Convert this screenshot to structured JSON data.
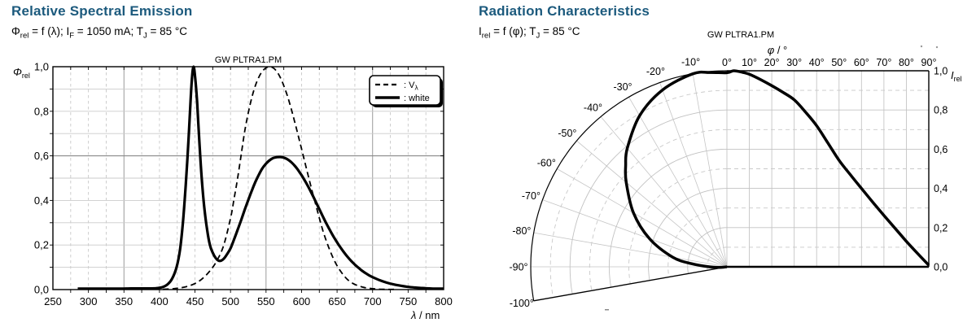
{
  "page": {
    "background": "#ffffff",
    "title_color": "#1c5a7d",
    "watermark_color": "#b4b4b4",
    "curve_color": "#000000"
  },
  "panels": {
    "spectral": {
      "title": "Relative Spectral Emission",
      "subtitle_segments": [
        {
          "t": "Φ"
        },
        {
          "s": "rel"
        },
        {
          "t": " = f (λ); I"
        },
        {
          "s": "F"
        },
        {
          "t": " = 1050 mA; T"
        },
        {
          "s": "J"
        },
        {
          "t": " = 85 °C"
        }
      ],
      "watermark": "GW PLTRA1.PM"
    },
    "radiation": {
      "title": "Radiation Characteristics",
      "subtitle_segments": [
        {
          "t": "I"
        },
        {
          "s": "rel"
        },
        {
          "t": " = f (φ); T"
        },
        {
          "s": "J"
        },
        {
          "t": " = 85 °C"
        }
      ],
      "watermark": "GW PLTRA1.PM"
    }
  },
  "chart_data": [
    {
      "type": "line",
      "title": "Relative Spectral Emission",
      "subtitle": "Φrel = f (λ); IF = 1050 mA; TJ = 85 °C",
      "xlabel": "λ / nm",
      "ylabel": "Φrel",
      "xlabel_rich": {
        "base": "λ",
        "suffix": " / nm"
      },
      "ylabel_rich": {
        "base": "Φ",
        "sub": "rel"
      },
      "xlim": [
        250,
        800
      ],
      "ylim": [
        0,
        1
      ],
      "grid": {
        "minor_x_step_nm": 25,
        "minor_y_step": 0.1,
        "emphasized_x": [
          350,
          550,
          700
        ],
        "emphasized_y": [
          0.6
        ]
      },
      "x_ticks": [
        {
          "v": 250,
          "label": "250"
        },
        {
          "v": 300,
          "label": "300"
        },
        {
          "v": 350,
          "label": "350"
        },
        {
          "v": 400,
          "label": "400"
        },
        {
          "v": 450,
          "label": "450"
        },
        {
          "v": 500,
          "label": "500"
        },
        {
          "v": 550,
          "label": "550"
        },
        {
          "v": 600,
          "label": "600"
        },
        {
          "v": 650,
          "label": "650"
        },
        {
          "v": 700,
          "label": "700"
        },
        {
          "v": 750,
          "label": "750"
        },
        {
          "v": 800,
          "label": "800"
        }
      ],
      "y_ticks": [
        {
          "v": 1,
          "label": "1,0"
        },
        {
          "v": 0.8,
          "label": "0,8"
        },
        {
          "v": 0.6,
          "label": "0,6"
        },
        {
          "v": 0.4,
          "label": "0,4"
        },
        {
          "v": 0.2,
          "label": "0,2"
        },
        {
          "v": 0,
          "label": "0,0"
        }
      ],
      "legend": {
        "position": "top-right",
        "entries": [
          {
            "name": "Vλ",
            "style": "dashed",
            "label_base": ": V",
            "label_sub": "λ"
          },
          {
            "name": "white",
            "style": "solid",
            "label_base": ": white",
            "label_sub": ""
          }
        ]
      },
      "series": [
        {
          "name": "Vλ",
          "style": "dashed",
          "points": [
            [
              405,
              0.001
            ],
            [
              420,
              0.004
            ],
            [
              430,
              0.008
            ],
            [
              440,
              0.015
            ],
            [
              450,
              0.027
            ],
            [
              460,
              0.048
            ],
            [
              470,
              0.08
            ],
            [
              480,
              0.125
            ],
            [
              490,
              0.195
            ],
            [
              500,
              0.32
            ],
            [
              505,
              0.407
            ],
            [
              510,
              0.5
            ],
            [
              515,
              0.605
            ],
            [
              520,
              0.71
            ],
            [
              525,
              0.793
            ],
            [
              530,
              0.862
            ],
            [
              535,
              0.915
            ],
            [
              540,
              0.954
            ],
            [
              545,
              0.98
            ],
            [
              550,
              0.995
            ],
            [
              555,
              1.0
            ],
            [
              560,
              0.995
            ],
            [
              565,
              0.979
            ],
            [
              570,
              0.952
            ],
            [
              575,
              0.915
            ],
            [
              580,
              0.87
            ],
            [
              585,
              0.816
            ],
            [
              590,
              0.757
            ],
            [
              595,
              0.695
            ],
            [
              600,
              0.631
            ],
            [
              605,
              0.567
            ],
            [
              610,
              0.503
            ],
            [
              615,
              0.441
            ],
            [
              620,
              0.381
            ],
            [
              625,
              0.321
            ],
            [
              630,
              0.265
            ],
            [
              635,
              0.217
            ],
            [
              640,
              0.175
            ],
            [
              645,
              0.138
            ],
            [
              650,
              0.107
            ],
            [
              655,
              0.082
            ],
            [
              660,
              0.061
            ],
            [
              665,
              0.044
            ],
            [
              670,
              0.032
            ],
            [
              675,
              0.023
            ],
            [
              680,
              0.017
            ],
            [
              685,
              0.012
            ],
            [
              690,
              0.008
            ],
            [
              700,
              0.004
            ],
            [
              710,
              0.002
            ],
            [
              720,
              0.001
            ],
            [
              730,
              0.001
            ]
          ]
        },
        {
          "name": "white",
          "style": "solid",
          "points": [
            [
              285,
              0.004
            ],
            [
              300,
              0.004
            ],
            [
              320,
              0.004
            ],
            [
              340,
              0.004
            ],
            [
              360,
              0.005
            ],
            [
              380,
              0.005
            ],
            [
              395,
              0.006
            ],
            [
              405,
              0.012
            ],
            [
              412,
              0.025
            ],
            [
              418,
              0.05
            ],
            [
              424,
              0.1
            ],
            [
              429,
              0.18
            ],
            [
              433,
              0.3
            ],
            [
              437,
              0.47
            ],
            [
              441,
              0.68
            ],
            [
              444,
              0.86
            ],
            [
              446,
              0.96
            ],
            [
              448,
              1.0
            ],
            [
              450,
              0.96
            ],
            [
              453,
              0.84
            ],
            [
              456,
              0.67
            ],
            [
              459,
              0.52
            ],
            [
              463,
              0.37
            ],
            [
              467,
              0.27
            ],
            [
              471,
              0.2
            ],
            [
              475,
              0.165
            ],
            [
              479,
              0.142
            ],
            [
              483,
              0.13
            ],
            [
              487,
              0.13
            ],
            [
              491,
              0.14
            ],
            [
              495,
              0.158
            ],
            [
              500,
              0.185
            ],
            [
              505,
              0.225
            ],
            [
              510,
              0.268
            ],
            [
              515,
              0.312
            ],
            [
              520,
              0.358
            ],
            [
              525,
              0.402
            ],
            [
              530,
              0.444
            ],
            [
              535,
              0.483
            ],
            [
              540,
              0.516
            ],
            [
              545,
              0.545
            ],
            [
              550,
              0.565
            ],
            [
              555,
              0.58
            ],
            [
              560,
              0.59
            ],
            [
              565,
              0.594
            ],
            [
              570,
              0.595
            ],
            [
              575,
              0.592
            ],
            [
              580,
              0.585
            ],
            [
              585,
              0.573
            ],
            [
              590,
              0.557
            ],
            [
              595,
              0.537
            ],
            [
              600,
              0.513
            ],
            [
              605,
              0.487
            ],
            [
              610,
              0.458
            ],
            [
              615,
              0.427
            ],
            [
              620,
              0.394
            ],
            [
              625,
              0.361
            ],
            [
              630,
              0.328
            ],
            [
              635,
              0.296
            ],
            [
              640,
              0.266
            ],
            [
              645,
              0.238
            ],
            [
              650,
              0.212
            ],
            [
              655,
              0.188
            ],
            [
              660,
              0.166
            ],
            [
              665,
              0.146
            ],
            [
              670,
              0.128
            ],
            [
              675,
              0.112
            ],
            [
              680,
              0.098
            ],
            [
              685,
              0.085
            ],
            [
              690,
              0.074
            ],
            [
              695,
              0.064
            ],
            [
              700,
              0.056
            ],
            [
              710,
              0.042
            ],
            [
              720,
              0.031
            ],
            [
              730,
              0.023
            ],
            [
              740,
              0.017
            ],
            [
              750,
              0.012
            ],
            [
              760,
              0.009
            ],
            [
              770,
              0.007
            ],
            [
              780,
              0.005
            ],
            [
              790,
              0.004
            ],
            [
              800,
              0.004
            ]
          ]
        }
      ]
    },
    {
      "type": "polar-cartesian-radiation",
      "title": "Radiation Characteristics",
      "subtitle": "Irel = f (φ); TJ = 85 °C",
      "angle_label": "φ / °",
      "r_label": "Irel",
      "angle_label_rich": {
        "base": "φ",
        "suffix": " / °"
      },
      "r_label_rich": {
        "base": "I",
        "sub": "rel"
      },
      "rlim": [
        0,
        1
      ],
      "polar_extent_deg": [
        -100,
        0
      ],
      "cartesian_extent_deg": [
        0,
        90
      ],
      "grid": {
        "angle_step_deg": 10,
        "r_step": 0.1
      },
      "angle_ticks_cartesian": [
        {
          "v": 0,
          "label": "0°"
        },
        {
          "v": 10,
          "label": "10°"
        },
        {
          "v": 20,
          "label": "20°"
        },
        {
          "v": 30,
          "label": "30°"
        },
        {
          "v": 40,
          "label": "40°"
        },
        {
          "v": 50,
          "label": "50°"
        },
        {
          "v": 60,
          "label": "60°"
        },
        {
          "v": 70,
          "label": "70°"
        },
        {
          "v": 80,
          "label": "80°"
        },
        {
          "v": 90,
          "label": "90°"
        }
      ],
      "angle_ticks_polar": [
        {
          "v": -10,
          "label": "-10°"
        },
        {
          "v": -20,
          "label": "-20°"
        },
        {
          "v": -30,
          "label": "-30°"
        },
        {
          "v": -40,
          "label": "-40°"
        },
        {
          "v": -50,
          "label": "-50°"
        },
        {
          "v": -60,
          "label": "-60°"
        },
        {
          "v": -70,
          "label": "-70°"
        },
        {
          "v": -80,
          "label": "-80°"
        },
        {
          "v": -90,
          "label": "-90°"
        },
        {
          "v": -100,
          "label": "-100°"
        }
      ],
      "r_ticks": [
        {
          "v": 1,
          "label": "1,0"
        },
        {
          "v": 0.8,
          "label": "0,8"
        },
        {
          "v": 0.6,
          "label": "0,6"
        },
        {
          "v": 0.4,
          "label": "0,4"
        },
        {
          "v": 0.2,
          "label": "0,2"
        },
        {
          "v": 0,
          "label": "0,0"
        }
      ],
      "series": [
        {
          "name": "Irel",
          "points": [
            [
              -100,
              0.0
            ],
            [
              -95,
              0.035
            ],
            [
              -90,
              0.09
            ],
            [
              -85,
              0.18
            ],
            [
              -80,
              0.28
            ],
            [
              -70,
              0.42
            ],
            [
              -60,
              0.55
            ],
            [
              -50,
              0.67
            ],
            [
              -45,
              0.73
            ],
            [
              -40,
              0.79
            ],
            [
              -30,
              0.89
            ],
            [
              -20,
              0.96
            ],
            [
              -10,
              1.0
            ],
            [
              -5,
              0.995
            ],
            [
              0,
              0.99
            ],
            [
              3,
              1.0
            ],
            [
              7,
              0.992
            ],
            [
              10,
              0.982
            ],
            [
              15,
              0.955
            ],
            [
              20,
              0.924
            ],
            [
              25,
              0.89
            ],
            [
              30,
              0.852
            ],
            [
              35,
              0.79
            ],
            [
              40,
              0.72
            ],
            [
              45,
              0.632
            ],
            [
              50,
              0.543
            ],
            [
              55,
              0.47
            ],
            [
              60,
              0.4
            ],
            [
              65,
              0.33
            ],
            [
              70,
              0.262
            ],
            [
              75,
              0.196
            ],
            [
              80,
              0.13
            ],
            [
              85,
              0.068
            ],
            [
              90,
              0.008
            ]
          ]
        }
      ]
    }
  ]
}
